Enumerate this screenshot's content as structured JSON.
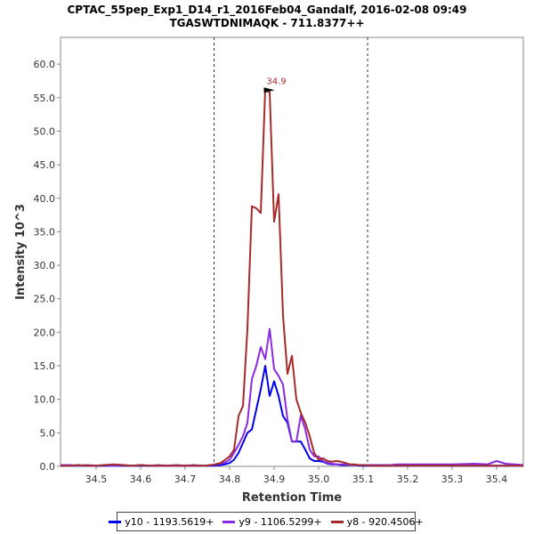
{
  "chart_data": {
    "type": "line",
    "title": "CPTAC_55pep_Exp1_D14_r1_2016Feb04_Gandalf, 2016-02-08 09:49",
    "subtitle": "TGASWTDNIMAQK - 711.8377++",
    "xlabel": "Retention Time",
    "ylabel": "Intensity 10^3",
    "xlim": [
      34.42,
      35.46
    ],
    "ylim": [
      0,
      64
    ],
    "xticks": [
      "34.5",
      "34.6",
      "34.7",
      "34.8",
      "34.9",
      "35.0",
      "35.1",
      "35.2",
      "35.3",
      "35.4"
    ],
    "yticks": [
      "0.0",
      "5.0",
      "10.0",
      "15.0",
      "20.0",
      "25.0",
      "30.0",
      "35.0",
      "40.0",
      "45.0",
      "50.0",
      "55.0",
      "60.0"
    ],
    "vlines": [
      34.765,
      35.11
    ],
    "annotations": [
      {
        "text": "34.9",
        "x": 34.905,
        "y": 56.0
      }
    ],
    "legend_position": "bottom",
    "series": [
      {
        "name": "y10 - 1193.5619+",
        "color": "#0000ee",
        "x": [
          34.42,
          34.44,
          34.46,
          34.48,
          34.5,
          34.52,
          34.54,
          34.56,
          34.58,
          34.6,
          34.62,
          34.64,
          34.66,
          34.68,
          34.7,
          34.72,
          34.74,
          34.76,
          34.78,
          34.79,
          34.8,
          34.81,
          34.82,
          34.83,
          34.84,
          34.85,
          34.86,
          34.87,
          34.88,
          34.89,
          34.9,
          34.91,
          34.92,
          34.93,
          34.94,
          34.95,
          34.96,
          34.97,
          34.98,
          34.99,
          35.0,
          35.01,
          35.02,
          35.03,
          35.04,
          35.05,
          35.06,
          35.07,
          35.08,
          35.1,
          35.12,
          35.14,
          35.16,
          35.18,
          35.2,
          35.25,
          35.3,
          35.35,
          35.4,
          35.42,
          35.44,
          35.46
        ],
        "values": [
          0.1,
          0.1,
          0.1,
          0.1,
          0.1,
          0.1,
          0.1,
          0.1,
          0.1,
          0.1,
          0.1,
          0.1,
          0.1,
          0.1,
          0.1,
          0.1,
          0.1,
          0.1,
          0.2,
          0.3,
          0.5,
          1.0,
          2.0,
          3.5,
          5.0,
          5.5,
          8.5,
          11.5,
          15.0,
          10.5,
          12.7,
          10.5,
          7.5,
          6.5,
          3.7,
          3.7,
          3.7,
          2.5,
          1.2,
          0.8,
          0.8,
          0.7,
          0.4,
          0.3,
          0.3,
          0.2,
          0.2,
          0.2,
          0.2,
          0.1,
          0.1,
          0.1,
          0.1,
          0.1,
          0.1,
          0.1,
          0.1,
          0.1,
          0.1,
          0.1,
          0.1,
          0.1
        ]
      },
      {
        "name": "y9 - 1106.5299+",
        "color": "#8a2be2",
        "x": [
          34.42,
          34.44,
          34.46,
          34.48,
          34.5,
          34.52,
          34.54,
          34.56,
          34.58,
          34.6,
          34.62,
          34.64,
          34.66,
          34.68,
          34.7,
          34.72,
          34.74,
          34.76,
          34.78,
          34.79,
          34.8,
          34.81,
          34.82,
          34.83,
          34.84,
          34.85,
          34.86,
          34.87,
          34.88,
          34.89,
          34.9,
          34.91,
          34.92,
          34.93,
          34.94,
          34.95,
          34.96,
          34.97,
          34.98,
          34.99,
          35.0,
          35.01,
          35.02,
          35.03,
          35.04,
          35.05,
          35.06,
          35.07,
          35.08,
          35.1,
          35.12,
          35.14,
          35.16,
          35.18,
          35.2,
          35.25,
          35.3,
          35.35,
          35.38,
          35.4,
          35.42,
          35.44,
          35.46
        ],
        "values": [
          0.2,
          0.2,
          0.1,
          0.2,
          0.1,
          0.2,
          0.1,
          0.2,
          0.1,
          0.2,
          0.1,
          0.2,
          0.1,
          0.2,
          0.1,
          0.2,
          0.1,
          0.2,
          0.4,
          0.6,
          1.0,
          2.0,
          3.2,
          4.5,
          6.5,
          13.0,
          15.0,
          17.8,
          16.0,
          20.5,
          14.5,
          13.5,
          12.2,
          7.0,
          3.7,
          3.7,
          7.6,
          5.5,
          2.5,
          1.5,
          1.5,
          0.8,
          0.5,
          0.4,
          0.3,
          0.3,
          0.3,
          0.2,
          0.2,
          0.2,
          0.2,
          0.2,
          0.2,
          0.3,
          0.3,
          0.3,
          0.3,
          0.4,
          0.3,
          0.8,
          0.4,
          0.3,
          0.2
        ]
      },
      {
        "name": "y8 - 920.4506+",
        "color": "#a52a2a",
        "x": [
          34.42,
          34.44,
          34.46,
          34.48,
          34.5,
          34.52,
          34.54,
          34.56,
          34.58,
          34.6,
          34.62,
          34.64,
          34.66,
          34.68,
          34.7,
          34.72,
          34.74,
          34.76,
          34.78,
          34.79,
          34.8,
          34.81,
          34.82,
          34.83,
          34.84,
          34.85,
          34.86,
          34.87,
          34.88,
          34.89,
          34.9,
          34.91,
          34.92,
          34.93,
          34.94,
          34.95,
          34.96,
          34.97,
          34.98,
          34.99,
          35.0,
          35.01,
          35.02,
          35.03,
          35.04,
          35.05,
          35.06,
          35.07,
          35.08,
          35.09,
          35.1,
          35.12,
          35.14,
          35.16,
          35.18,
          35.2,
          35.25,
          35.3,
          35.35,
          35.4,
          35.42,
          35.44,
          35.46
        ],
        "values": [
          0.1,
          0.1,
          0.2,
          0.1,
          0.1,
          0.2,
          0.3,
          0.2,
          0.1,
          0.2,
          0.1,
          0.1,
          0.1,
          0.1,
          0.1,
          0.1,
          0.1,
          0.2,
          0.5,
          1.0,
          1.5,
          2.5,
          7.5,
          9.0,
          20.5,
          38.8,
          38.5,
          37.8,
          56.2,
          55.8,
          36.5,
          40.6,
          22.5,
          13.8,
          16.5,
          10.0,
          8.0,
          6.5,
          4.5,
          2.0,
          1.0,
          1.2,
          0.8,
          0.7,
          0.8,
          0.7,
          0.5,
          0.3,
          0.3,
          0.2,
          0.2,
          0.1,
          0.1,
          0.1,
          0.1,
          0.1,
          0.1,
          0.1,
          0.1,
          0.1,
          0.1,
          0.1,
          0.1
        ]
      }
    ]
  }
}
